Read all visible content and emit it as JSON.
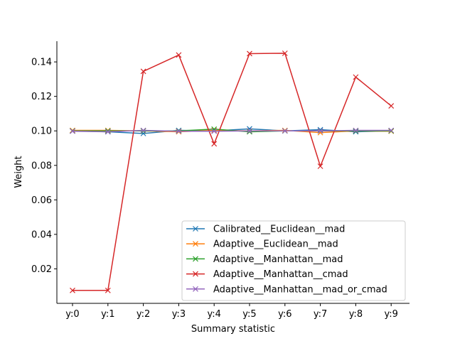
{
  "chart_data": {
    "type": "line",
    "title": "",
    "xlabel": "Summary statistic",
    "ylabel": "Weight",
    "categories": [
      "y:0",
      "y:1",
      "y:2",
      "y:3",
      "y:4",
      "y:5",
      "y:6",
      "y:7",
      "y:8",
      "y:9"
    ],
    "ylim": [
      0.0,
      0.152
    ],
    "yticks": [
      0.02,
      0.04,
      0.06,
      0.08,
      0.1,
      0.12,
      0.14
    ],
    "ytick_labels": [
      "0.02",
      "0.04",
      "0.06",
      "0.08",
      "0.10",
      "0.12",
      "0.14"
    ],
    "grid": false,
    "legend_position": "lower-right",
    "marker": "x",
    "series": [
      {
        "name": "Calibrated__Euclidean__mad",
        "color": "#1f77b4",
        "values": [
          0.1,
          0.0995,
          0.0985,
          0.1003,
          0.1,
          0.1012,
          0.1,
          0.1007,
          0.0995,
          0.1
        ]
      },
      {
        "name": "Adaptive__Euclidean__mad",
        "color": "#ff7f0e",
        "values": [
          0.1003,
          0.1003,
          0.1,
          0.0995,
          0.1003,
          0.1,
          0.1003,
          0.099,
          0.1,
          0.0998
        ]
      },
      {
        "name": "Adaptive__Manhattan__mad",
        "color": "#2ca02c",
        "values": [
          0.1,
          0.1,
          0.1,
          0.1,
          0.101,
          0.0995,
          0.1,
          0.1,
          0.1,
          0.1
        ]
      },
      {
        "name": "Adaptive__Manhattan__cmad",
        "color": "#d62728",
        "values": [
          0.0075,
          0.0075,
          0.1345,
          0.144,
          0.0925,
          0.1448,
          0.145,
          0.0795,
          0.1312,
          0.1145
        ]
      },
      {
        "name": "Adaptive__Manhattan__mad_or_cmad",
        "color": "#9467bd",
        "values": [
          0.0998,
          0.0995,
          0.1003,
          0.0998,
          0.0998,
          0.1,
          0.1,
          0.1,
          0.1003,
          0.1003
        ]
      }
    ]
  }
}
